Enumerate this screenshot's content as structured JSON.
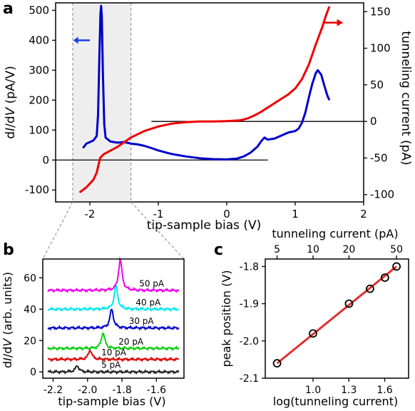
{
  "chart_data": [
    {
      "panel": "a",
      "type": "line",
      "x": {
        "label_parts": [
          "tip-sample bias (V)"
        ],
        "lim": [
          -2.5,
          2.0
        ],
        "ticks": [
          -2,
          -1,
          0,
          1,
          2
        ]
      },
      "y_left": {
        "label_parts": [
          "d",
          "I",
          "/d",
          "V",
          " (pA/V)"
        ],
        "lim": [
          -140,
          525
        ],
        "ticks": [
          -100,
          0,
          100,
          200,
          300,
          400,
          500
        ],
        "color": "#0000cc"
      },
      "y_right": {
        "label": "tunneling current (pA)",
        "lim": [
          -110,
          162
        ],
        "ticks": [
          -100,
          -50,
          0,
          50,
          100,
          150
        ],
        "color": "#ee0000"
      },
      "shaded_region": {
        "x": [
          -2.25,
          -1.4
        ],
        "color": "#eeeeee"
      },
      "series": [
        {
          "axis": "left",
          "color": "#0000cc",
          "points": [
            [
              -2.1,
              40
            ],
            [
              -2.05,
              55
            ],
            [
              -2.0,
              60
            ],
            [
              -1.95,
              65
            ],
            [
              -1.9,
              80
            ],
            [
              -1.88,
              150
            ],
            [
              -1.86,
              350
            ],
            [
              -1.845,
              490
            ],
            [
              -1.835,
              515
            ],
            [
              -1.825,
              480
            ],
            [
              -1.81,
              300
            ],
            [
              -1.79,
              120
            ],
            [
              -1.77,
              75
            ],
            [
              -1.7,
              62
            ],
            [
              -1.6,
              58
            ],
            [
              -1.5,
              60
            ],
            [
              -1.4,
              55
            ],
            [
              -1.3,
              52
            ],
            [
              -1.2,
              47
            ],
            [
              -1.1,
              40
            ],
            [
              -1.0,
              32
            ],
            [
              -0.9,
              26
            ],
            [
              -0.8,
              20
            ],
            [
              -0.6,
              12
            ],
            [
              -0.4,
              6
            ],
            [
              -0.2,
              3
            ],
            [
              0.0,
              2
            ],
            [
              0.15,
              5
            ],
            [
              0.25,
              12
            ],
            [
              0.35,
              25
            ],
            [
              0.45,
              45
            ],
            [
              0.5,
              62
            ],
            [
              0.55,
              75
            ],
            [
              0.6,
              68
            ],
            [
              0.7,
              72
            ],
            [
              0.8,
              82
            ],
            [
              0.9,
              92
            ],
            [
              1.0,
              97
            ],
            [
              1.05,
              105
            ],
            [
              1.1,
              125
            ],
            [
              1.15,
              160
            ],
            [
              1.2,
              210
            ],
            [
              1.25,
              255
            ],
            [
              1.3,
              290
            ],
            [
              1.33,
              300
            ],
            [
              1.38,
              285
            ],
            [
              1.43,
              245
            ],
            [
              1.47,
              215
            ],
            [
              1.5,
              200
            ]
          ]
        },
        {
          "axis": "right",
          "color": "#ee0000",
          "points": [
            [
              -2.15,
              -97
            ],
            [
              -2.05,
              -90
            ],
            [
              -1.95,
              -80
            ],
            [
              -1.9,
              -70
            ],
            [
              -1.85,
              -50
            ],
            [
              -1.8,
              -45
            ],
            [
              -1.6,
              -35
            ],
            [
              -1.4,
              -22
            ],
            [
              -1.2,
              -13
            ],
            [
              -1.0,
              -7
            ],
            [
              -0.8,
              -3
            ],
            [
              -0.6,
              -1
            ],
            [
              -0.4,
              0
            ],
            [
              -0.2,
              0
            ],
            [
              0.0,
              0.5
            ],
            [
              0.2,
              1.5
            ],
            [
              0.3,
              4
            ],
            [
              0.4,
              8
            ],
            [
              0.5,
              13
            ],
            [
              0.6,
              19
            ],
            [
              0.7,
              25
            ],
            [
              0.8,
              31
            ],
            [
              0.9,
              37
            ],
            [
              1.0,
              45
            ],
            [
              1.1,
              58
            ],
            [
              1.2,
              78
            ],
            [
              1.3,
              105
            ],
            [
              1.4,
              130
            ],
            [
              1.45,
              145
            ],
            [
              1.5,
              157
            ]
          ]
        }
      ],
      "zero_lines": [
        {
          "axis": "left",
          "x": [
            -2.5,
            0.6
          ]
        },
        {
          "axis": "right",
          "x": [
            -1.1,
            2.0
          ]
        }
      ]
    },
    {
      "panel": "b",
      "type": "line",
      "x": {
        "label": "tip-sample bias (V)",
        "lim": [
          -2.26,
          -1.44
        ],
        "ticks": [
          -2.2,
          -2.0,
          -1.8,
          -1.6
        ]
      },
      "y": {
        "label_parts": [
          "d",
          "I",
          "/d",
          "V",
          " (arb. units)"
        ],
        "lim": [
          -4,
          72
        ],
        "ticks": [
          0,
          20,
          40,
          60
        ]
      },
      "series": [
        {
          "name": "5 pA",
          "color": "#222222",
          "offset": 0,
          "peak_x": -2.06,
          "peak_h": 4,
          "width": 0.012,
          "label_x": -1.92
        },
        {
          "name": "10 pA",
          "color": "#dd0000",
          "offset": 8,
          "peak_x": -1.985,
          "peak_h": 6,
          "width": 0.012,
          "label_x": -1.92
        },
        {
          "name": "20 pA",
          "color": "#11cc11",
          "offset": 15,
          "peak_x": -1.91,
          "peak_h": 10,
          "width": 0.012,
          "label_x": -1.82
        },
        {
          "name": "30 pA",
          "color": "#0000cc",
          "offset": 28,
          "peak_x": -1.86,
          "peak_h": 12,
          "width": 0.012,
          "label_x": -1.76
        },
        {
          "name": "40 pA",
          "color": "#00e8f0",
          "offset": 40,
          "peak_x": -1.835,
          "peak_h": 15,
          "width": 0.012,
          "label_x": -1.72
        },
        {
          "name": "50 pA",
          "color": "#ee00ee",
          "offset": 52,
          "peak_x": -1.81,
          "peak_h": 20,
          "width": 0.012,
          "label_x": -1.7
        }
      ]
    },
    {
      "panel": "c",
      "type": "scatter",
      "x": {
        "label": "log(tunneling current)",
        "lim": [
          0.6,
          1.8
        ],
        "ticks": [
          1.0,
          1.3,
          1.6
        ],
        "tick_labels": [
          "1.0",
          "1.3",
          "1.6"
        ]
      },
      "x_top": {
        "label": "tunneling current (pA)",
        "ticks": [
          5,
          10,
          20,
          50
        ]
      },
      "y": {
        "label": "peak position (V)",
        "lim": [
          -2.1,
          -1.78
        ],
        "ticks": [
          -2.1,
          -2.0,
          -1.9,
          -1.8
        ],
        "tick_labels": [
          "-2.1",
          "-2.0",
          "-1.9",
          "-1.8"
        ]
      },
      "points": [
        [
          0.699,
          -2.06
        ],
        [
          1.0,
          -1.98
        ],
        [
          1.301,
          -1.9
        ],
        [
          1.477,
          -1.86
        ],
        [
          1.602,
          -1.83
        ],
        [
          1.699,
          -1.8
        ]
      ],
      "fit_line": {
        "x": [
          0.699,
          1.699
        ],
        "y": [
          -2.06,
          -1.8
        ],
        "color": "#e03030"
      }
    }
  ],
  "panel_labels": {
    "a": "a",
    "b": "b",
    "c": "c"
  }
}
